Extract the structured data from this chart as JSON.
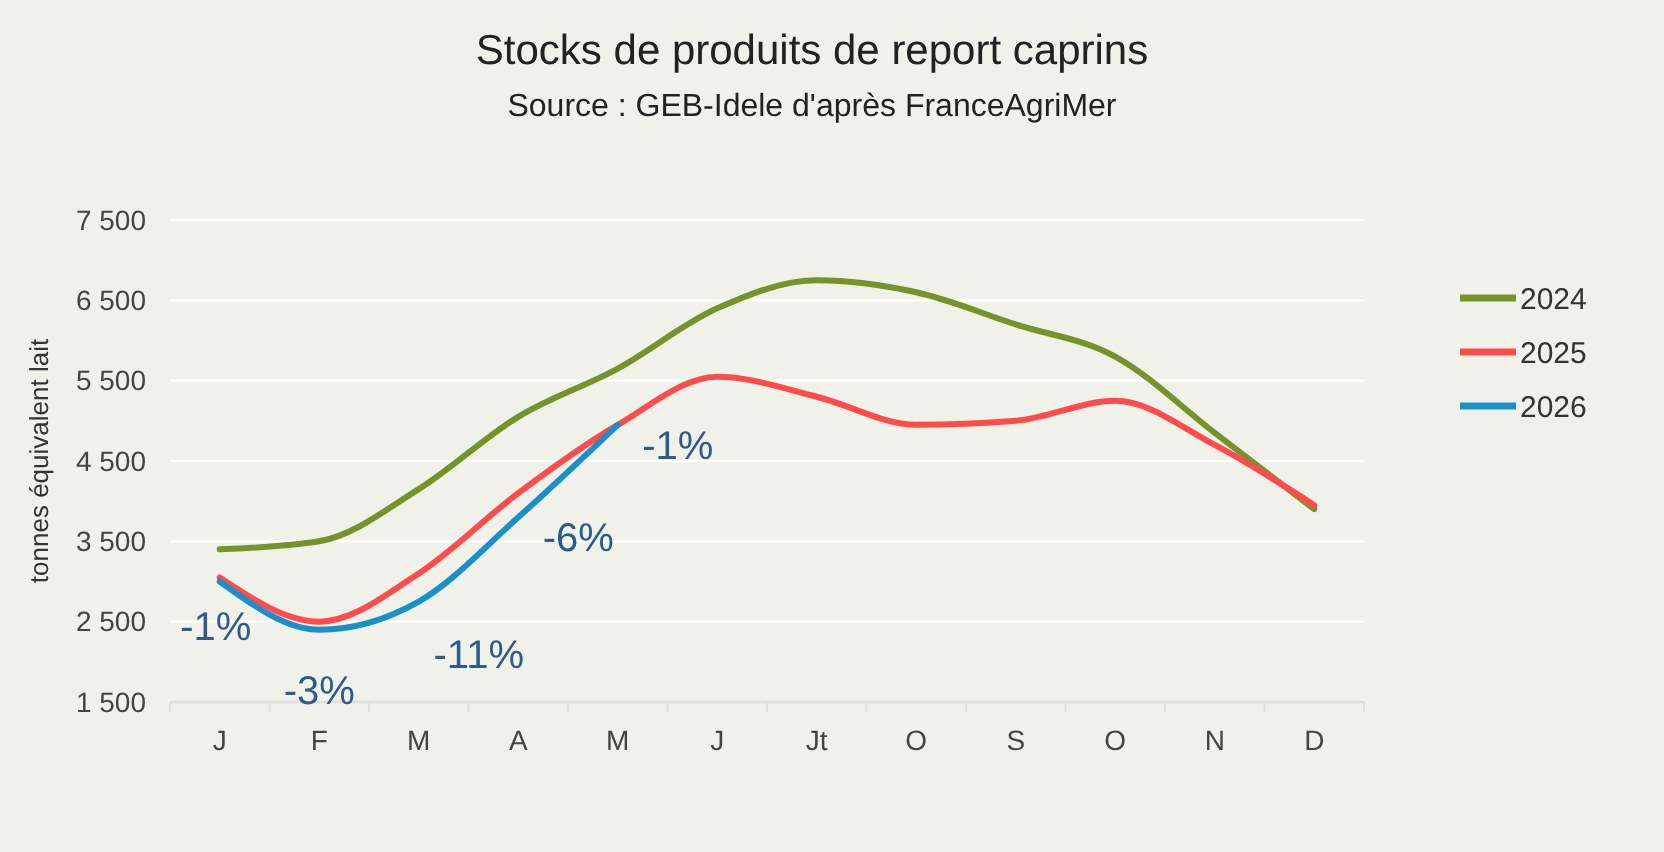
{
  "chart_data": {
    "type": "line",
    "title": "Stocks de produits de report caprins",
    "subtitle": "Source : GEB-Idele d'après FranceAgriMer",
    "ylabel": "tonnes équivalent lait",
    "categories": [
      "J",
      "F",
      "M",
      "A",
      "M",
      "J",
      "Jt",
      "O",
      "S",
      "O",
      "N",
      "D"
    ],
    "series": [
      {
        "name": "2024",
        "color": "#77922a",
        "values": [
          3400,
          3500,
          4150,
          5050,
          5650,
          6400,
          6750,
          6600,
          6200,
          5800,
          4850,
          3900
        ]
      },
      {
        "name": "2025",
        "color": "#ff4b4b",
        "values": [
          3050,
          2500,
          3100,
          4100,
          4950,
          5550,
          5300,
          4950,
          5000,
          5250,
          4700,
          3950
        ]
      },
      {
        "name": "2026",
        "color": "#1a8fc9",
        "values": [
          3000,
          2400,
          2750,
          3800,
          4950,
          null,
          null,
          null,
          null,
          null,
          null,
          null
        ]
      }
    ],
    "annotations": [
      "-1%",
      "-3%",
      "-11%",
      "-6%",
      "-1%"
    ],
    "ylim": [
      1500,
      7500
    ],
    "yticks": [
      {
        "value": 1500,
        "label": "1 500"
      },
      {
        "value": 2500,
        "label": "2 500"
      },
      {
        "value": 3500,
        "label": "3 500"
      },
      {
        "value": 4500,
        "label": "4 500"
      },
      {
        "value": 5500,
        "label": "5 500"
      },
      {
        "value": 6500,
        "label": "6 500"
      },
      {
        "value": 7500,
        "label": "7 500"
      }
    ],
    "grid": "y",
    "legend": "right",
    "line_style": "solid",
    "marker": "none"
  }
}
